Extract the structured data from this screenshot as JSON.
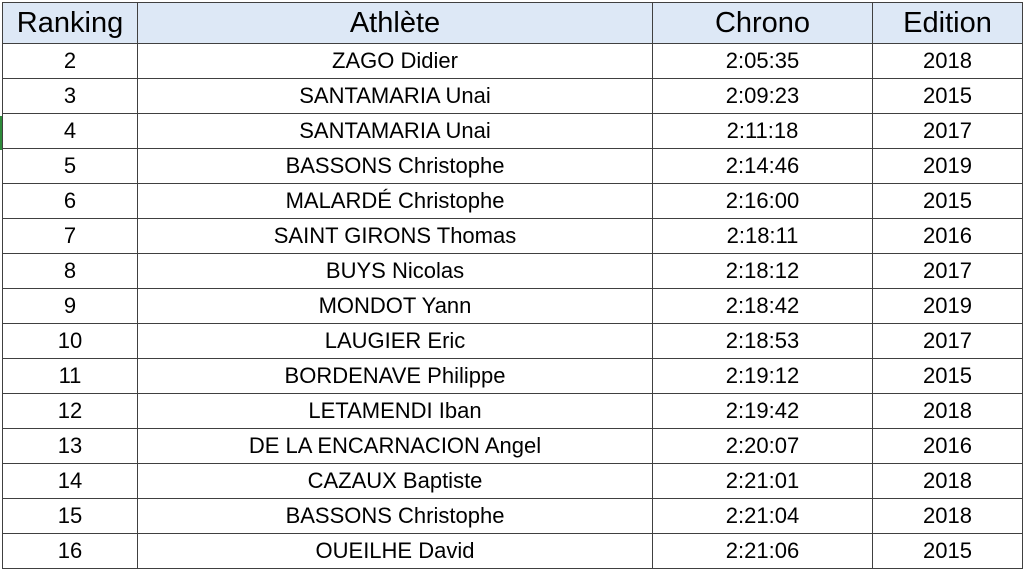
{
  "table": {
    "headers": {
      "rank": "Ranking",
      "athlete": "Athlète",
      "chrono": "Chrono",
      "edition": "Edition"
    },
    "rows": [
      {
        "rank": "2",
        "athlete": "ZAGO Didier",
        "chrono": "2:05:35",
        "edition": "2018"
      },
      {
        "rank": "3",
        "athlete": "SANTAMARIA Unai",
        "chrono": "2:09:23",
        "edition": "2015"
      },
      {
        "rank": "4",
        "athlete": "SANTAMARIA Unai",
        "chrono": "2:11:18",
        "edition": "2017"
      },
      {
        "rank": "5",
        "athlete": "BASSONS  Christophe",
        "chrono": "2:14:46",
        "edition": "2019"
      },
      {
        "rank": "6",
        "athlete": "MALARDÉ Christophe",
        "chrono": "2:16:00",
        "edition": "2015"
      },
      {
        "rank": "7",
        "athlete": "SAINT GIRONS Thomas",
        "chrono": "2:18:11",
        "edition": "2016"
      },
      {
        "rank": "8",
        "athlete": "BUYS Nicolas",
        "chrono": "2:18:12",
        "edition": "2017"
      },
      {
        "rank": "9",
        "athlete": "MONDOT  Yann",
        "chrono": "2:18:42",
        "edition": "2019"
      },
      {
        "rank": "10",
        "athlete": "LAUGIER Eric",
        "chrono": "2:18:53",
        "edition": "2017"
      },
      {
        "rank": "11",
        "athlete": "BORDENAVE Philippe",
        "chrono": "2:19:12",
        "edition": "2015"
      },
      {
        "rank": "12",
        "athlete": "LETAMENDI Iban",
        "chrono": "2:19:42",
        "edition": "2018"
      },
      {
        "rank": "13",
        "athlete": "DE LA ENCARNACION Angel",
        "chrono": "2:20:07",
        "edition": "2016"
      },
      {
        "rank": "14",
        "athlete": "CAZAUX Baptiste",
        "chrono": "2:21:01",
        "edition": "2018"
      },
      {
        "rank": "15",
        "athlete": "BASSONS Christophe",
        "chrono": "2:21:04",
        "edition": "2018"
      },
      {
        "rank": "16",
        "athlete": "OUEILHE David",
        "chrono": "2:21:06",
        "edition": "2015"
      }
    ]
  },
  "colors": {
    "header_background": "#dde8f6",
    "grid_line": "#404040",
    "selection_mark": "#2e8b3a"
  }
}
